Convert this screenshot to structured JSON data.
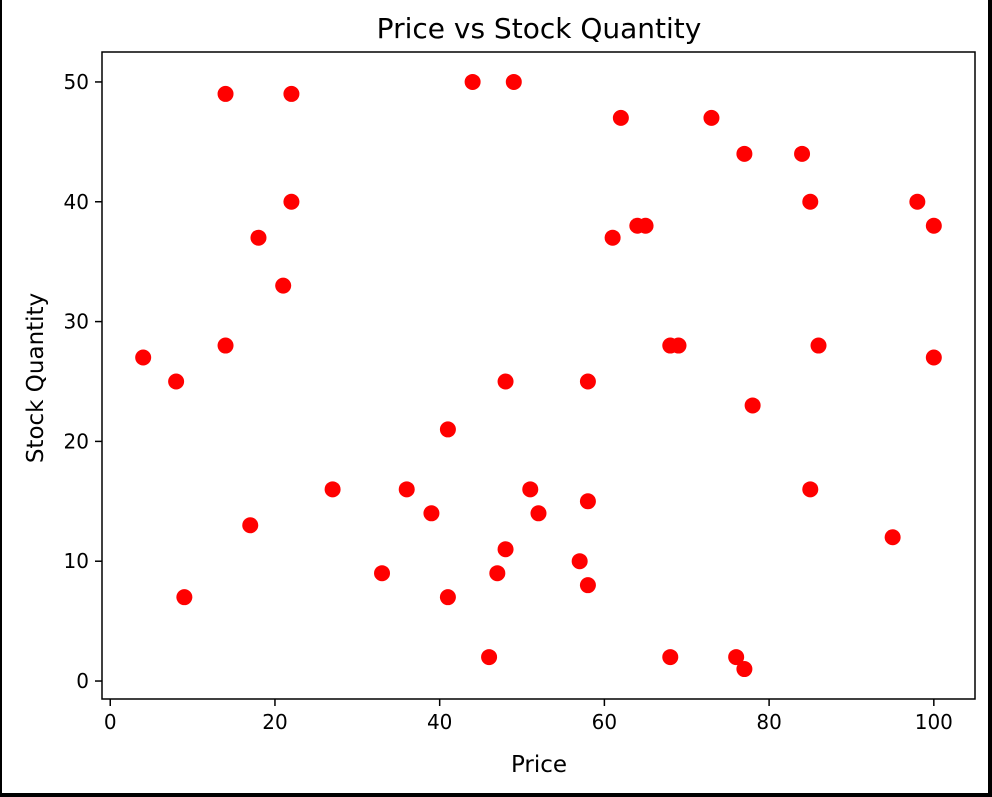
{
  "chart_data": {
    "type": "scatter",
    "title": "Price vs Stock Quantity",
    "xlabel": "Price",
    "ylabel": "Stock Quantity",
    "xlim": [
      -1,
      105
    ],
    "ylim": [
      -1.5,
      52.5
    ],
    "xticks": [
      0,
      20,
      40,
      60,
      80,
      100
    ],
    "yticks": [
      0,
      10,
      20,
      30,
      40,
      50
    ],
    "grid": false,
    "marker_color": "#ff0000",
    "points": [
      [
        14,
        49
      ],
      [
        22,
        49
      ],
      [
        44,
        50
      ],
      [
        49,
        50
      ],
      [
        62,
        47
      ],
      [
        73,
        47
      ],
      [
        77,
        44
      ],
      [
        84,
        44
      ],
      [
        22,
        40
      ],
      [
        85,
        40
      ],
      [
        98,
        40
      ],
      [
        100,
        38
      ],
      [
        18,
        37
      ],
      [
        61,
        37
      ],
      [
        64,
        38
      ],
      [
        65,
        38
      ],
      [
        21,
        33
      ],
      [
        14,
        28
      ],
      [
        4,
        27
      ],
      [
        8,
        25
      ],
      [
        48,
        25
      ],
      [
        58,
        25
      ],
      [
        68,
        28
      ],
      [
        69,
        28
      ],
      [
        86,
        28
      ],
      [
        100,
        27
      ],
      [
        78,
        23
      ],
      [
        41,
        21
      ],
      [
        27,
        16
      ],
      [
        36,
        16
      ],
      [
        51,
        16
      ],
      [
        85,
        16
      ],
      [
        39,
        14
      ],
      [
        52,
        14
      ],
      [
        58,
        15
      ],
      [
        17,
        13
      ],
      [
        95,
        12
      ],
      [
        48,
        11
      ],
      [
        57,
        10
      ],
      [
        33,
        9
      ],
      [
        47,
        9
      ],
      [
        58,
        8
      ],
      [
        9,
        7
      ],
      [
        41,
        7
      ],
      [
        46,
        2
      ],
      [
        68,
        2
      ],
      [
        76,
        2
      ],
      [
        77,
        1
      ]
    ]
  }
}
